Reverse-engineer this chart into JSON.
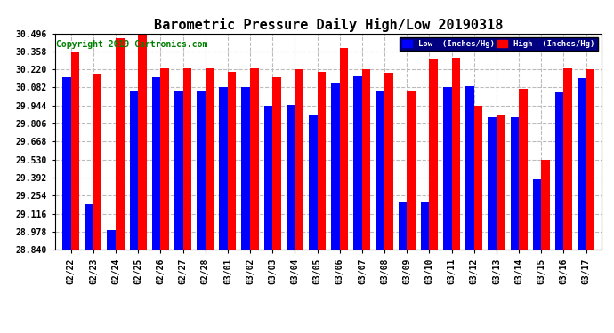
{
  "title": "Barometric Pressure Daily High/Low 20190318",
  "copyright": "Copyright 2019 Cartronics.com",
  "legend_low": "Low  (Inches/Hg)",
  "legend_high": "High  (Inches/Hg)",
  "categories": [
    "02/22",
    "02/23",
    "02/24",
    "02/25",
    "02/26",
    "02/27",
    "02/28",
    "03/01",
    "03/02",
    "03/03",
    "03/04",
    "03/05",
    "03/06",
    "03/07",
    "03/08",
    "03/09",
    "03/10",
    "03/11",
    "03/12",
    "03/13",
    "03/14",
    "03/15",
    "03/16",
    "03/17"
  ],
  "high_values": [
    30.358,
    30.19,
    30.46,
    30.49,
    30.225,
    30.225,
    30.225,
    30.2,
    30.225,
    30.16,
    30.22,
    30.2,
    30.385,
    30.22,
    30.195,
    30.06,
    30.295,
    30.31,
    29.94,
    29.87,
    30.07,
    29.53,
    30.23,
    30.22
  ],
  "low_values": [
    30.16,
    29.19,
    28.99,
    30.055,
    30.16,
    30.05,
    30.06,
    30.085,
    30.085,
    29.94,
    29.95,
    29.87,
    30.115,
    30.165,
    30.06,
    29.21,
    29.2,
    30.085,
    30.09,
    29.855,
    29.855,
    29.38,
    30.045,
    30.15
  ],
  "ylim_min": 28.84,
  "ylim_max": 30.496,
  "yticks": [
    28.84,
    28.978,
    29.116,
    29.254,
    29.392,
    29.53,
    29.668,
    29.806,
    29.944,
    30.082,
    30.22,
    30.358,
    30.496
  ],
  "bar_color_low": "#0000ff",
  "bar_color_high": "#ff0000",
  "background_color": "#ffffff",
  "grid_color": "#bbbbbb",
  "title_fontsize": 11,
  "tick_fontsize": 7,
  "copyright_fontsize": 7
}
